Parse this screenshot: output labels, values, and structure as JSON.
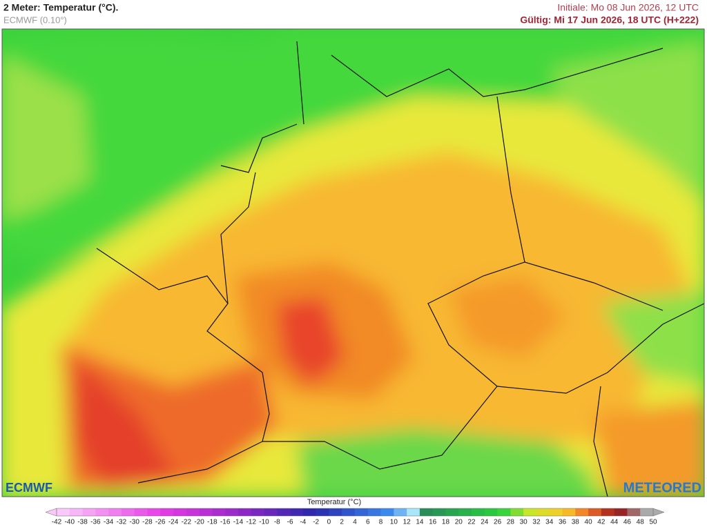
{
  "header": {
    "title": "2 Meter: Temperatur (°C).",
    "model": "ECMWF (0.10°)",
    "init": "Initiale: Mo 08 Jun 2026, 12 UTC",
    "valid": "Gültig: Mi 17 Jun 2026, 18 UTC (H+222)"
  },
  "logos": {
    "left": "ECMWF",
    "right": "METEORED"
  },
  "legend": {
    "title": "Temperatur (°C)",
    "ticks": [
      -42,
      -40,
      -38,
      -36,
      -34,
      -32,
      -30,
      -28,
      -26,
      -24,
      -22,
      -20,
      -18,
      -16,
      -14,
      -12,
      -10,
      -8,
      -6,
      -4,
      -2,
      0,
      2,
      4,
      6,
      8,
      10,
      12,
      14,
      16,
      18,
      20,
      22,
      24,
      26,
      28,
      30,
      32,
      34,
      36,
      38,
      40,
      42,
      44,
      46,
      48,
      50
    ]
  }
}
